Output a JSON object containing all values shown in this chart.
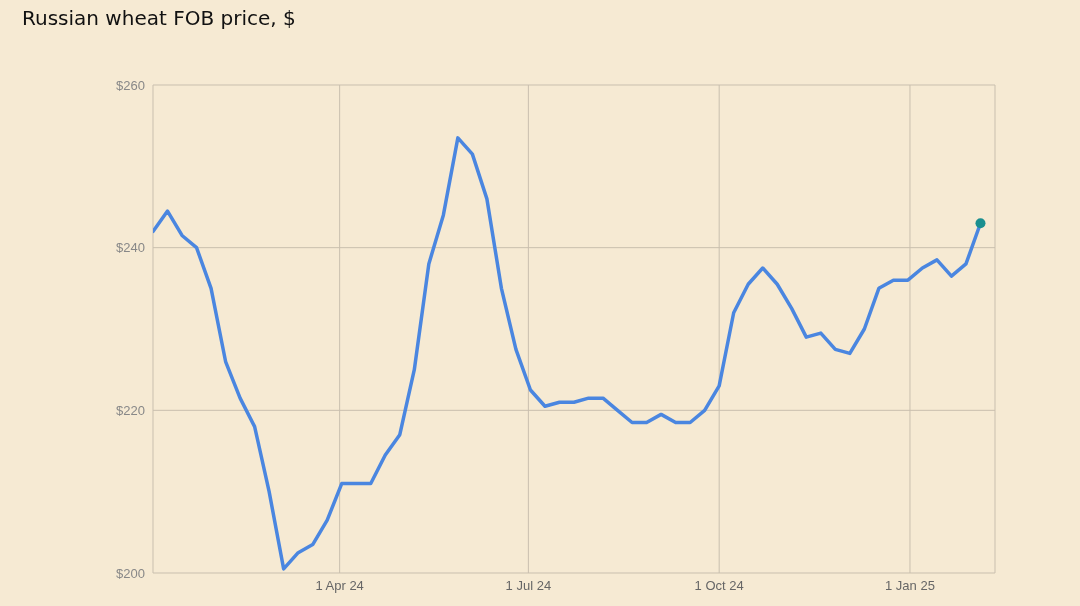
{
  "chart_data": {
    "type": "line",
    "title": "Russian wheat FOB price, $",
    "x": [
      "2024-01-02",
      "2024-01-09",
      "2024-01-16",
      "2024-01-23",
      "2024-01-30",
      "2024-02-06",
      "2024-02-13",
      "2024-02-20",
      "2024-02-27",
      "2024-03-05",
      "2024-03-12",
      "2024-03-19",
      "2024-03-26",
      "2024-04-02",
      "2024-04-09",
      "2024-04-16",
      "2024-04-23",
      "2024-04-30",
      "2024-05-07",
      "2024-05-14",
      "2024-05-21",
      "2024-05-28",
      "2024-06-04",
      "2024-06-11",
      "2024-06-18",
      "2024-06-25",
      "2024-07-02",
      "2024-07-09",
      "2024-07-16",
      "2024-07-23",
      "2024-07-30",
      "2024-08-06",
      "2024-08-13",
      "2024-08-20",
      "2024-08-27",
      "2024-09-03",
      "2024-09-10",
      "2024-09-17",
      "2024-09-24",
      "2024-10-01",
      "2024-10-08",
      "2024-10-15",
      "2024-10-22",
      "2024-10-29",
      "2024-11-05",
      "2024-11-12",
      "2024-11-19",
      "2024-11-26",
      "2024-12-03",
      "2024-12-10",
      "2024-12-17",
      "2024-12-24",
      "2024-12-31",
      "2025-01-07",
      "2025-01-14",
      "2025-01-21",
      "2025-01-28",
      "2025-02-04"
    ],
    "series": [
      {
        "color": "#4a86e0",
        "values": [
          242,
          244.5,
          241.5,
          240,
          235,
          226,
          221.5,
          218,
          210,
          200.5,
          202.5,
          203.5,
          206.5,
          211,
          211,
          211,
          214.5,
          217,
          225,
          238,
          244,
          253.5,
          251.5,
          246,
          235,
          227.5,
          222.5,
          220.5,
          221,
          221,
          221.5,
          221.5,
          220,
          218.5,
          218.5,
          219.5,
          218.5,
          218.5,
          220,
          223,
          232,
          235.5,
          237.5,
          235.5,
          232.5,
          229,
          229.5,
          227.5,
          227,
          230,
          235,
          236,
          236,
          237.5,
          238.5,
          236.5,
          238,
          243
        ]
      },
      {
        "type": "scatter",
        "color": "#1a8f8f",
        "x": [
          "2025-02-04"
        ],
        "values": [
          243
        ]
      }
    ],
    "xlim": [
      "2024-01-02",
      "2025-02-11"
    ],
    "xticks": [
      {
        "value": "2024-04-01",
        "label": "1 Apr 24"
      },
      {
        "value": "2024-07-01",
        "label": "1 Jul 24"
      },
      {
        "value": "2024-10-01",
        "label": "1 Oct 24"
      },
      {
        "value": "2025-01-01",
        "label": "1 Jan 25"
      }
    ],
    "ylim": [
      200,
      260
    ],
    "yticks": [
      {
        "value": 200,
        "label": "$200"
      },
      {
        "value": 220,
        "label": "$220"
      },
      {
        "value": 240,
        "label": "$240"
      },
      {
        "value": 260,
        "label": "$260"
      }
    ],
    "grid": true,
    "legend": false
  }
}
